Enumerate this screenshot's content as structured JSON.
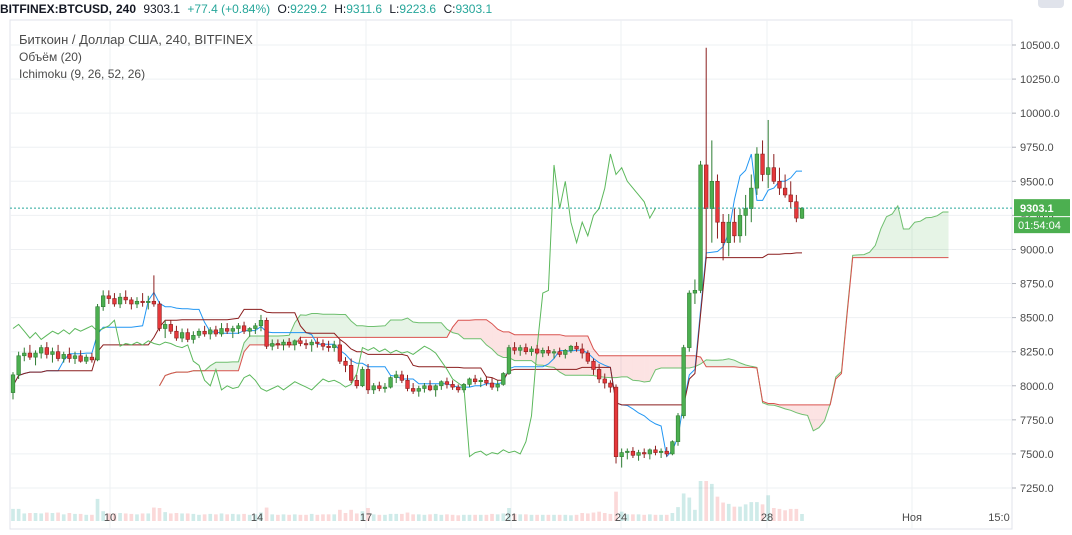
{
  "header": {
    "symbol": "BITFINEX:BTCUSD,",
    "interval": "240",
    "last": "9303.1",
    "change": "+77.4 (+0.84%)",
    "o_label": "O:",
    "o": "9229.2",
    "h_label": "H:",
    "h": "9311.6",
    "l_label": "L:",
    "l": "9223.6",
    "c_label": "C:",
    "c": "9303.1"
  },
  "legend": {
    "title": "Биткоин / Доллар США, 240, BITFINEX",
    "volume": "Объём (20)",
    "ichimoku": "Ichimoku (9, 26, 52, 26)"
  },
  "chart_data": {
    "type": "candlestick",
    "title": "Биткоин / Доллар США, 240, BITFINEX",
    "ylim": [
      7150,
      10650
    ],
    "y_ticks": [
      "10500.0",
      "10250.0",
      "10000.0",
      "9750.0",
      "9500.0",
      "9250.0",
      "9000.0",
      "8750.0",
      "8500.0",
      "8250.0",
      "8000.0",
      "7750.0",
      "7500.0",
      "7250.0"
    ],
    "x_ticks": [
      "10",
      "14",
      "17",
      "21",
      "24",
      "28",
      "Ноя",
      "15:0"
    ],
    "price_label": "9303.1",
    "countdown_label": "01:54:04",
    "last_price": 9303.1,
    "grid": true,
    "candles": [
      [
        7950,
        8100,
        7900,
        8080
      ],
      [
        8080,
        8250,
        8050,
        8220
      ],
      [
        8220,
        8280,
        8180,
        8240
      ],
      [
        8240,
        8300,
        8190,
        8210
      ],
      [
        8210,
        8260,
        8150,
        8240
      ],
      [
        8240,
        8300,
        8200,
        8280
      ],
      [
        8280,
        8320,
        8200,
        8230
      ],
      [
        8230,
        8280,
        8170,
        8250
      ],
      [
        8250,
        8300,
        8180,
        8200
      ],
      [
        8200,
        8250,
        8170,
        8230
      ],
      [
        8230,
        8280,
        8170,
        8200
      ],
      [
        8200,
        8250,
        8160,
        8220
      ],
      [
        8220,
        8260,
        8170,
        8180
      ],
      [
        8180,
        8230,
        8160,
        8210
      ],
      [
        8210,
        8240,
        8170,
        8190
      ],
      [
        8190,
        8600,
        8180,
        8580
      ],
      [
        8580,
        8700,
        8550,
        8660
      ],
      [
        8660,
        8700,
        8600,
        8640
      ],
      [
        8640,
        8680,
        8580,
        8600
      ],
      [
        8600,
        8680,
        8570,
        8650
      ],
      [
        8650,
        8700,
        8600,
        8630
      ],
      [
        8630,
        8650,
        8560,
        8600
      ],
      [
        8600,
        8650,
        8570,
        8620
      ],
      [
        8620,
        8680,
        8580,
        8610
      ],
      [
        8610,
        8660,
        8560,
        8620
      ],
      [
        8620,
        8810,
        8580,
        8600
      ],
      [
        8600,
        8620,
        8400,
        8420
      ],
      [
        8420,
        8480,
        8350,
        8450
      ],
      [
        8450,
        8480,
        8380,
        8400
      ],
      [
        8400,
        8440,
        8330,
        8350
      ],
      [
        8350,
        8420,
        8320,
        8390
      ],
      [
        8390,
        8420,
        8320,
        8340
      ],
      [
        8340,
        8400,
        8310,
        8370
      ],
      [
        8370,
        8420,
        8350,
        8400
      ],
      [
        8400,
        8440,
        8360,
        8380
      ],
      [
        8380,
        8430,
        8340,
        8410
      ],
      [
        8410,
        8440,
        8360,
        8380
      ],
      [
        8380,
        8460,
        8360,
        8420
      ],
      [
        8420,
        8460,
        8380,
        8400
      ],
      [
        8400,
        8440,
        8350,
        8420
      ],
      [
        8420,
        8460,
        8380,
        8440
      ],
      [
        8440,
        8470,
        8380,
        8400
      ],
      [
        8400,
        8430,
        8360,
        8420
      ],
      [
        8420,
        8460,
        8380,
        8440
      ],
      [
        8440,
        8520,
        8400,
        8480
      ],
      [
        8480,
        8500,
        8270,
        8290
      ],
      [
        8290,
        8340,
        8260,
        8310
      ],
      [
        8310,
        8340,
        8270,
        8300
      ],
      [
        8300,
        8340,
        8260,
        8320
      ],
      [
        8320,
        8350,
        8280,
        8300
      ],
      [
        8300,
        8340,
        8260,
        8330
      ],
      [
        8330,
        8360,
        8290,
        8310
      ],
      [
        8310,
        8340,
        8270,
        8300
      ],
      [
        8300,
        8340,
        8250,
        8320
      ],
      [
        8320,
        8350,
        8280,
        8310
      ],
      [
        8310,
        8340,
        8260,
        8290
      ],
      [
        8290,
        8330,
        8250,
        8280
      ],
      [
        8280,
        8330,
        8250,
        8300
      ],
      [
        8300,
        8340,
        8160,
        8180
      ],
      [
        8180,
        8210,
        8100,
        8150
      ],
      [
        8150,
        8200,
        8020,
        8040
      ],
      [
        8040,
        8080,
        7980,
        8000
      ],
      [
        8000,
        8140,
        7990,
        8120
      ],
      [
        8120,
        8160,
        7940,
        7970
      ],
      [
        7970,
        8020,
        7940,
        8000
      ],
      [
        8000,
        8030,
        7960,
        7980
      ],
      [
        7980,
        8020,
        7950,
        7990
      ],
      [
        7990,
        8070,
        7980,
        8060
      ],
      [
        8060,
        8110,
        8020,
        8080
      ],
      [
        8080,
        8110,
        8020,
        8040
      ],
      [
        8040,
        8080,
        7960,
        7980
      ],
      [
        7980,
        8020,
        7940,
        7960
      ],
      [
        7960,
        8000,
        7920,
        7980
      ],
      [
        7980,
        8020,
        7950,
        8000
      ],
      [
        8000,
        8040,
        7960,
        7970
      ],
      [
        7970,
        8010,
        7920,
        8000
      ],
      [
        8000,
        8040,
        7970,
        8030
      ],
      [
        8030,
        8060,
        7980,
        8010
      ],
      [
        8010,
        8040,
        7970,
        7990
      ],
      [
        7990,
        8010,
        7950,
        7970
      ],
      [
        7970,
        8020,
        7950,
        8010
      ],
      [
        8010,
        8060,
        7990,
        8050
      ],
      [
        8050,
        8080,
        8010,
        8030
      ],
      [
        8030,
        8060,
        7990,
        8040
      ],
      [
        8040,
        8070,
        8000,
        8020
      ],
      [
        8020,
        8060,
        7970,
        7990
      ],
      [
        7990,
        8040,
        7960,
        8010
      ],
      [
        8010,
        8100,
        8000,
        8090
      ],
      [
        8090,
        8300,
        8080,
        8280
      ],
      [
        8280,
        8320,
        8230,
        8260
      ],
      [
        8260,
        8300,
        8220,
        8280
      ],
      [
        8280,
        8310,
        8230,
        8250
      ],
      [
        8250,
        8290,
        8220,
        8270
      ],
      [
        8270,
        8300,
        8230,
        8240
      ],
      [
        8240,
        8280,
        8210,
        8260
      ],
      [
        8260,
        8290,
        8220,
        8240
      ],
      [
        8240,
        8270,
        8200,
        8250
      ],
      [
        8250,
        8280,
        8210,
        8230
      ],
      [
        8230,
        8270,
        8200,
        8260
      ],
      [
        8260,
        8300,
        8240,
        8290
      ],
      [
        8290,
        8320,
        8250,
        8270
      ],
      [
        8270,
        8310,
        8200,
        8240
      ],
      [
        8240,
        8260,
        8160,
        8180
      ],
      [
        8180,
        8200,
        8080,
        8120
      ],
      [
        8120,
        8160,
        8020,
        8050
      ],
      [
        8050,
        8090,
        7980,
        8020
      ],
      [
        8020,
        8040,
        7950,
        7990
      ],
      [
        7990,
        8010,
        7430,
        7480
      ],
      [
        7480,
        7540,
        7400,
        7510
      ],
      [
        7510,
        7540,
        7460,
        7520
      ],
      [
        7520,
        7550,
        7470,
        7490
      ],
      [
        7490,
        7530,
        7450,
        7510
      ],
      [
        7510,
        7540,
        7470,
        7500
      ],
      [
        7500,
        7540,
        7460,
        7530
      ],
      [
        7530,
        7560,
        7490,
        7510
      ],
      [
        7510,
        7540,
        7470,
        7520
      ],
      [
        7520,
        7550,
        7480,
        7500
      ],
      [
        7500,
        7600,
        7490,
        7590
      ],
      [
        7590,
        7800,
        7560,
        7780
      ],
      [
        7780,
        8300,
        7760,
        8280
      ],
      [
        8280,
        8700,
        8250,
        8680
      ],
      [
        8680,
        8780,
        8600,
        8700
      ],
      [
        8700,
        9650,
        8680,
        9620
      ],
      [
        9620,
        10480,
        8930,
        9300
      ],
      [
        9300,
        9800,
        9050,
        9500
      ],
      [
        9500,
        9550,
        9080,
        9200
      ],
      [
        9200,
        9260,
        8920,
        9050
      ],
      [
        9050,
        9260,
        8950,
        9200
      ],
      [
        9200,
        9300,
        9050,
        9100
      ],
      [
        9100,
        9300,
        9050,
        9250
      ],
      [
        9250,
        9400,
        9100,
        9300
      ],
      [
        9300,
        9550,
        9200,
        9450
      ],
      [
        9450,
        9750,
        9400,
        9700
      ],
      [
        9700,
        9800,
        9500,
        9550
      ],
      [
        9550,
        9950,
        9450,
        9600
      ],
      [
        9600,
        9700,
        9480,
        9500
      ],
      [
        9500,
        9600,
        9400,
        9450
      ],
      [
        9450,
        9550,
        9380,
        9400
      ],
      [
        9400,
        9500,
        9300,
        9350
      ],
      [
        9350,
        9400,
        9200,
        9230
      ],
      [
        9229.2,
        9311.6,
        9223.6,
        9303.1
      ]
    ]
  }
}
